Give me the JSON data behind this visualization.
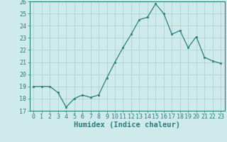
{
  "x": [
    0,
    1,
    2,
    3,
    4,
    5,
    6,
    7,
    8,
    9,
    10,
    11,
    12,
    13,
    14,
    15,
    16,
    17,
    18,
    19,
    20,
    21,
    22,
    23
  ],
  "y": [
    19.0,
    19.0,
    19.0,
    18.5,
    17.3,
    18.0,
    18.3,
    18.1,
    18.3,
    19.7,
    21.0,
    22.2,
    23.3,
    24.5,
    24.7,
    25.8,
    25.0,
    23.3,
    23.6,
    22.2,
    23.1,
    21.4,
    21.1,
    20.9
  ],
  "xlabel": "Humidex (Indice chaleur)",
  "xlim": [
    -0.5,
    23.5
  ],
  "ylim": [
    17,
    26
  ],
  "yticks": [
    17,
    18,
    19,
    20,
    21,
    22,
    23,
    24,
    25,
    26
  ],
  "xticks": [
    0,
    1,
    2,
    3,
    4,
    5,
    6,
    7,
    8,
    9,
    10,
    11,
    12,
    13,
    14,
    15,
    16,
    17,
    18,
    19,
    20,
    21,
    22,
    23
  ],
  "line_color": "#2d7d7d",
  "marker_color": "#2d7d7d",
  "bg_color": "#ceeaea",
  "grid_color": "#aacece",
  "axis_color": "#2d7d7d",
  "tick_label_color": "#2d7d7d",
  "xlabel_color": "#2d7d7d",
  "tick_fontsize": 6.0,
  "xlabel_fontsize": 7.5
}
